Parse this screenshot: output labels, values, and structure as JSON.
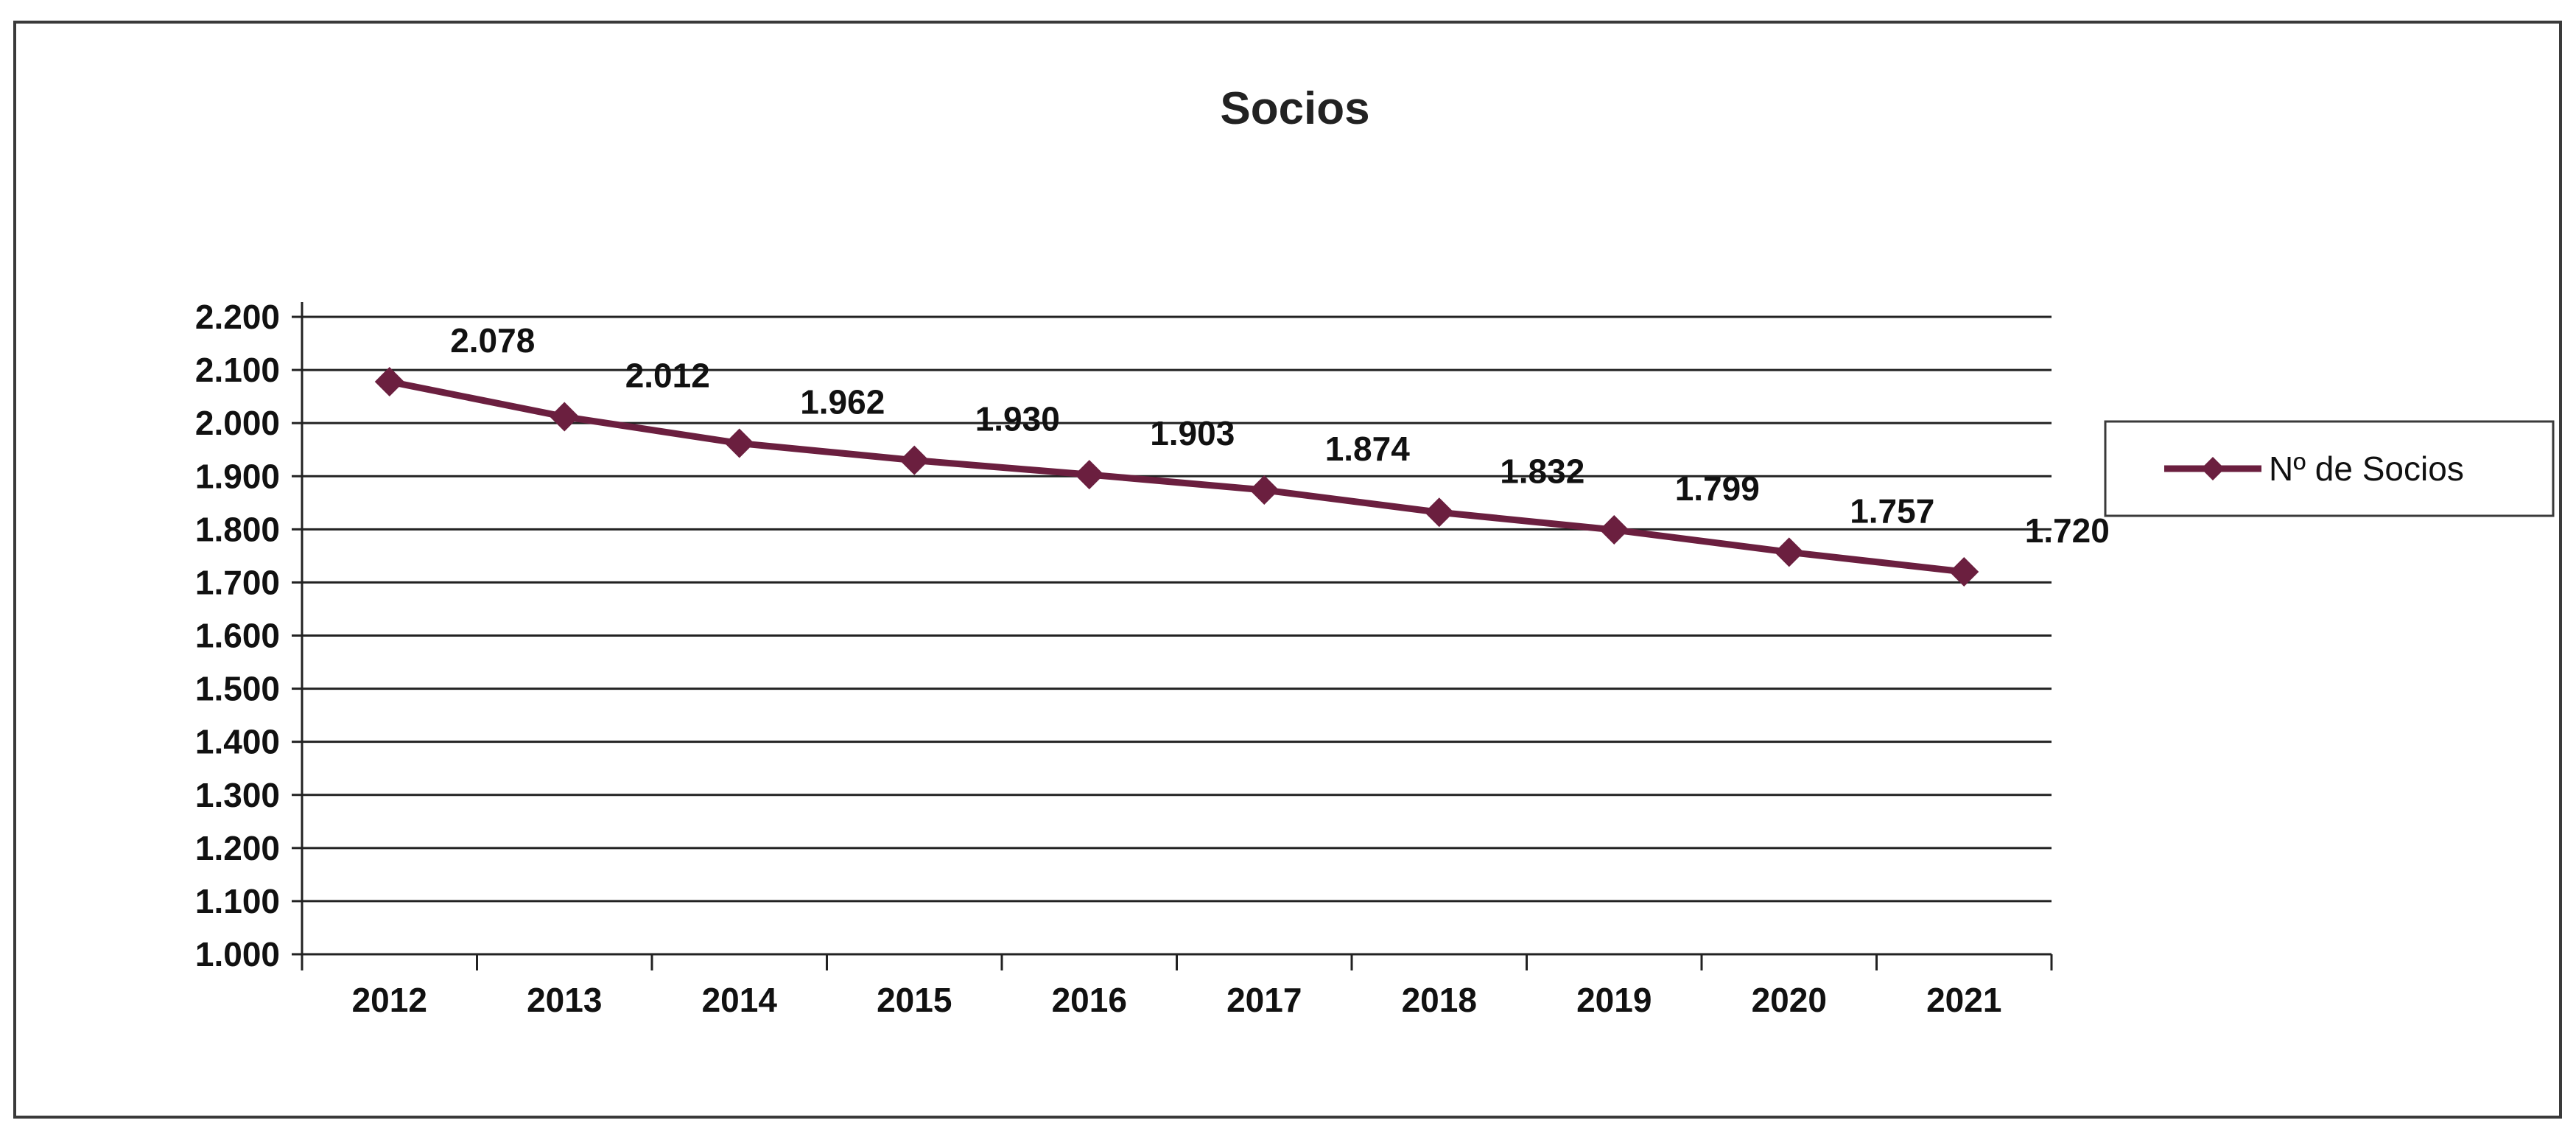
{
  "chart_data": {
    "type": "line",
    "title": "Socios",
    "xlabel": "",
    "ylabel": "",
    "categories": [
      "2012",
      "2013",
      "2014",
      "2015",
      "2016",
      "2017",
      "2018",
      "2019",
      "2020",
      "2021"
    ],
    "series": [
      {
        "name": "Nº de Socios",
        "values": [
          2078,
          2012,
          1962,
          1930,
          1903,
          1874,
          1832,
          1799,
          1757,
          1720
        ],
        "labels": [
          "2.078",
          "2.012",
          "1.962",
          "1.930",
          "1.903",
          "1.874",
          "1.832",
          "1.799",
          "1.757",
          "1.720"
        ],
        "color": "#6b1f3f"
      }
    ],
    "ylim": [
      1000,
      2200
    ],
    "yticks": [
      2200,
      2100,
      2000,
      1900,
      1800,
      1700,
      1600,
      1500,
      1400,
      1300,
      1200,
      1100,
      1000
    ],
    "ytick_labels": [
      "2.200",
      "2.100",
      "2.000",
      "1.900",
      "1.800",
      "1.700",
      "1.600",
      "1.500",
      "1.400",
      "1.300",
      "1.200",
      "1.100",
      "1.000"
    ],
    "grid": true,
    "legend": "right"
  }
}
